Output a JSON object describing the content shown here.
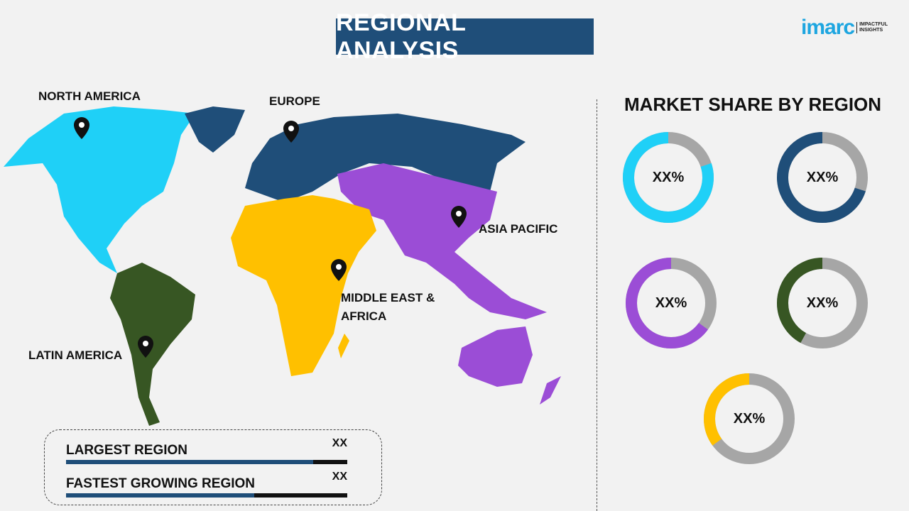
{
  "title": "REGIONAL ANALYSIS",
  "logo": {
    "brand": "imarc",
    "tagline_1": "IMPACTFUL",
    "tagline_2": "INSIGHTS"
  },
  "map": {
    "regions": [
      {
        "name": "NORTH AMERICA",
        "color": "#1fd0f7"
      },
      {
        "name": "EUROPE",
        "color": "#1f4e79"
      },
      {
        "name": "ASIA PACIFIC",
        "color": "#9b4dd6"
      },
      {
        "name": "MIDDLE EAST & AFRICA",
        "color": "#ffc000"
      },
      {
        "name": "LATIN AMERICA",
        "color": "#375623"
      }
    ],
    "icon": "map-pin-icon"
  },
  "market_share": {
    "title": "MARKET SHARE BY REGION",
    "remainder_color": "#a6a6a6",
    "donuts": [
      {
        "label": "XX%",
        "color": "#1fd0f7",
        "fill_fraction": 0.8
      },
      {
        "label": "XX%",
        "color": "#1f4e79",
        "fill_fraction": 0.7
      },
      {
        "label": "XX%",
        "color": "#9b4dd6",
        "fill_fraction": 0.65
      },
      {
        "label": "XX%",
        "color": "#375623",
        "fill_fraction": 0.42
      },
      {
        "label": "XX%",
        "color": "#ffc000",
        "fill_fraction": 0.35
      }
    ]
  },
  "summary": {
    "rows": [
      {
        "label": "LARGEST REGION",
        "value": "XX",
        "bar_fraction": 0.88
      },
      {
        "label": "FASTEST GROWING REGION",
        "value": "XX",
        "bar_fraction": 0.67
      }
    ]
  }
}
